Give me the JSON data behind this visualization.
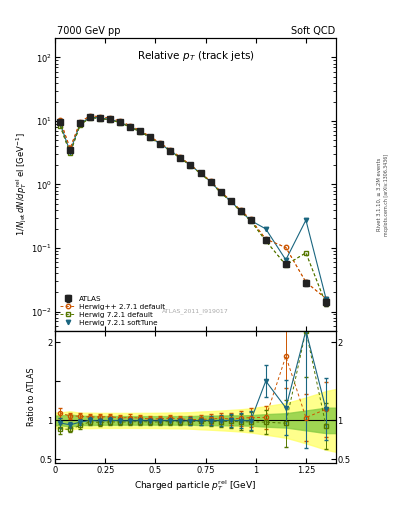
{
  "title_top_left": "7000 GeV pp",
  "title_top_right": "Soft QCD",
  "plot_title": "Relative p$_{T}$ (track jets)",
  "xlabel": "Charged particle p$_{T}^{rel}$ [GeV]",
  "ylabel_main": "1/N$_{jet}$ dN/dp$_{T}^{rel}$ el [GeV$^{-1}$]",
  "ylabel_ratio": "Ratio to ATLAS",
  "right_label_top": "Rivet 3.1.10, ≥ 3.2M events",
  "right_label_bot": "mcplots.cern.ch [arXiv:1306.3436]",
  "watermark": "ATLAS_2011_I919017",
  "xlim": [
    0.0,
    1.4
  ],
  "ylim_main_log": [
    -2.3,
    2.3
  ],
  "ylim_ratio": [
    0.45,
    2.15
  ],
  "atlas_x": [
    0.025,
    0.075,
    0.125,
    0.175,
    0.225,
    0.275,
    0.325,
    0.375,
    0.425,
    0.475,
    0.525,
    0.575,
    0.625,
    0.675,
    0.725,
    0.775,
    0.825,
    0.875,
    0.925,
    0.975,
    1.05,
    1.15,
    1.25,
    1.35
  ],
  "atlas_y": [
    9.5,
    3.5,
    9.2,
    11.5,
    11.2,
    10.6,
    9.6,
    8.1,
    6.85,
    5.55,
    4.35,
    3.42,
    2.62,
    2.01,
    1.51,
    1.11,
    0.755,
    0.548,
    0.382,
    0.272,
    0.133,
    0.056,
    0.028,
    0.014
  ],
  "atlas_yerr": [
    0.4,
    0.2,
    0.35,
    0.45,
    0.4,
    0.38,
    0.34,
    0.28,
    0.24,
    0.19,
    0.15,
    0.12,
    0.09,
    0.07,
    0.06,
    0.045,
    0.032,
    0.024,
    0.017,
    0.013,
    0.008,
    0.004,
    0.003,
    0.002
  ],
  "herwig_pp_x": [
    0.025,
    0.075,
    0.125,
    0.175,
    0.225,
    0.275,
    0.325,
    0.375,
    0.425,
    0.475,
    0.525,
    0.575,
    0.625,
    0.675,
    0.725,
    0.775,
    0.825,
    0.875,
    0.925,
    0.975,
    1.05,
    1.15,
    1.25,
    1.35
  ],
  "herwig_pp_y": [
    10.4,
    3.7,
    9.7,
    12.0,
    11.7,
    11.1,
    9.9,
    8.4,
    7.05,
    5.65,
    4.44,
    3.52,
    2.67,
    2.03,
    1.53,
    1.13,
    0.775,
    0.558,
    0.392,
    0.282,
    0.138,
    0.102,
    0.029,
    0.016
  ],
  "herwig721d_x": [
    0.025,
    0.075,
    0.125,
    0.175,
    0.225,
    0.275,
    0.325,
    0.375,
    0.425,
    0.475,
    0.525,
    0.575,
    0.625,
    0.675,
    0.725,
    0.775,
    0.825,
    0.875,
    0.925,
    0.975,
    1.05,
    1.15,
    1.25,
    1.35
  ],
  "herwig721d_y": [
    8.45,
    3.1,
    8.6,
    11.3,
    10.9,
    10.4,
    9.4,
    7.95,
    6.75,
    5.44,
    4.27,
    3.37,
    2.57,
    1.98,
    1.49,
    1.095,
    0.744,
    0.542,
    0.375,
    0.267,
    0.13,
    0.054,
    0.084,
    0.013
  ],
  "herwig721s_x": [
    0.025,
    0.075,
    0.125,
    0.175,
    0.225,
    0.275,
    0.325,
    0.375,
    0.425,
    0.475,
    0.525,
    0.575,
    0.625,
    0.675,
    0.725,
    0.775,
    0.825,
    0.875,
    0.925,
    0.975,
    1.05,
    1.15,
    1.25,
    1.35
  ],
  "herwig721s_y": [
    9.2,
    3.3,
    9.0,
    11.5,
    11.1,
    10.6,
    9.55,
    8.05,
    6.82,
    5.52,
    4.33,
    3.41,
    2.6,
    2.0,
    1.505,
    1.107,
    0.752,
    0.548,
    0.381,
    0.271,
    0.2,
    0.065,
    0.275,
    0.016
  ],
  "atlas_color": "#222222",
  "herwig_pp_color": "#cc5500",
  "herwig721d_color": "#557700",
  "herwig721s_color": "#1a6680",
  "band_yellow": "#ffff66",
  "band_green": "#88cc44",
  "ratio_hpp_y": [
    1.095,
    1.057,
    1.054,
    1.043,
    1.045,
    1.047,
    1.031,
    1.037,
    1.029,
    1.018,
    1.021,
    1.029,
    1.019,
    1.01,
    1.013,
    1.018,
    1.026,
    1.018,
    1.026,
    1.037,
    1.038,
    1.821,
    1.036,
    1.143
  ],
  "ratio_hpp_yerr": [
    0.06,
    0.04,
    0.04,
    0.04,
    0.04,
    0.04,
    0.04,
    0.04,
    0.04,
    0.04,
    0.04,
    0.04,
    0.04,
    0.05,
    0.05,
    0.06,
    0.07,
    0.08,
    0.1,
    0.12,
    0.15,
    0.4,
    0.3,
    0.35
  ],
  "ratio_h721d_y": [
    0.889,
    0.886,
    0.935,
    0.983,
    0.973,
    0.981,
    0.979,
    0.981,
    0.985,
    0.979,
    0.981,
    0.985,
    0.981,
    0.985,
    0.987,
    0.986,
    0.985,
    0.988,
    0.982,
    0.982,
    0.977,
    0.964,
    3.0,
    0.929
  ],
  "ratio_h721d_yerr": [
    0.06,
    0.04,
    0.04,
    0.04,
    0.04,
    0.04,
    0.04,
    0.04,
    0.04,
    0.04,
    0.04,
    0.04,
    0.04,
    0.05,
    0.05,
    0.06,
    0.07,
    0.08,
    0.1,
    0.12,
    0.15,
    0.3,
    0.6,
    0.3
  ],
  "ratio_h721s_y": [
    0.968,
    0.943,
    0.978,
    1.0,
    0.991,
    1.0,
    0.995,
    0.994,
    0.996,
    0.995,
    0.995,
    0.997,
    0.992,
    0.995,
    0.997,
    0.997,
    0.996,
    0.999,
    0.997,
    0.996,
    1.504,
    1.161,
    9.821,
    1.143
  ],
  "ratio_h721s_yerr": [
    0.06,
    0.04,
    0.04,
    0.04,
    0.04,
    0.04,
    0.04,
    0.04,
    0.04,
    0.04,
    0.04,
    0.04,
    0.04,
    0.05,
    0.05,
    0.06,
    0.07,
    0.08,
    0.1,
    0.12,
    0.2,
    0.35,
    1.5,
    0.4
  ]
}
